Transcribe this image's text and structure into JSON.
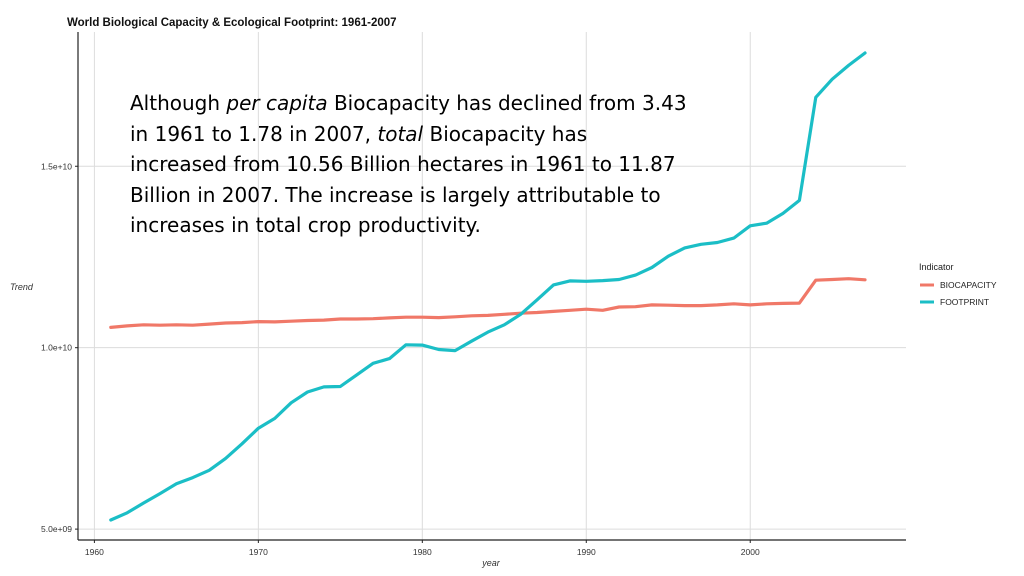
{
  "colors": {
    "biocapacity": "#F07868",
    "footprint": "#1BBEC6",
    "grid": "#dcdcdc",
    "axis": "#222222"
  },
  "annotation": {
    "seg1": "Although ",
    "em1": "per capita",
    "seg2": " Biocapacity has declined from 3.43 in 1961 to 1.78 in 2007, ",
    "em2": "total",
    "seg3": " Biocapacity has increased from 10.56 Billion hectares in 1961 to 11.87 Billion in 2007.  The increase is largely attributable to increases in total crop productivity."
  },
  "chart_data": {
    "type": "line",
    "title": "World Biological Capacity & Ecological Footprint:  1961-2007",
    "xlabel": "year",
    "ylabel": "Trend",
    "xlim": [
      1959,
      2009.5
    ],
    "ylim": [
      4700000000.0,
      18700000000.0
    ],
    "x_ticks": [
      1960,
      1970,
      1980,
      1990,
      2000
    ],
    "x_tick_labels": [
      "1960",
      "1970",
      "1980",
      "1990",
      "2000"
    ],
    "y_ticks": [
      5000000000.0,
      10000000000.0,
      15000000000.0
    ],
    "y_tick_labels": [
      "5.0e+09",
      "1.0e+10",
      "1.5e+10"
    ],
    "grid": true,
    "legend_title": "Indicator",
    "legend_position": "right",
    "x": [
      1961,
      1962,
      1963,
      1964,
      1965,
      1966,
      1967,
      1968,
      1969,
      1970,
      1971,
      1972,
      1973,
      1974,
      1975,
      1976,
      1977,
      1978,
      1979,
      1980,
      1981,
      1982,
      1983,
      1984,
      1985,
      1986,
      1987,
      1988,
      1989,
      1990,
      1991,
      1992,
      1993,
      1994,
      1995,
      1996,
      1997,
      1998,
      1999,
      2000,
      2001,
      2002,
      2003,
      2004,
      2005,
      2006,
      2007
    ],
    "series": [
      {
        "name": "BIOCAPACITY",
        "values": [
          10560000000.0,
          10600000000.0,
          10630000000.0,
          10620000000.0,
          10630000000.0,
          10620000000.0,
          10650000000.0,
          10680000000.0,
          10690000000.0,
          10720000000.0,
          10710000000.0,
          10730000000.0,
          10750000000.0,
          10760000000.0,
          10790000000.0,
          10790000000.0,
          10800000000.0,
          10820000000.0,
          10840000000.0,
          10840000000.0,
          10830000000.0,
          10850000000.0,
          10880000000.0,
          10890000000.0,
          10920000000.0,
          10950000000.0,
          10970000000.0,
          11000000000.0,
          11030000000.0,
          11060000000.0,
          11030000000.0,
          11120000000.0,
          11130000000.0,
          11180000000.0,
          11170000000.0,
          11160000000.0,
          11160000000.0,
          11180000000.0,
          11210000000.0,
          11180000000.0,
          11210000000.0,
          11220000000.0,
          11230000000.0,
          11860000000.0,
          11880000000.0,
          11900000000.0,
          11870000000.0
        ]
      },
      {
        "name": "FOOTPRINT",
        "values": [
          5250000000.0,
          5450000000.0,
          5720000000.0,
          5980000000.0,
          6250000000.0,
          6420000000.0,
          6620000000.0,
          6950000000.0,
          7350000000.0,
          7780000000.0,
          8050000000.0,
          8480000000.0,
          8780000000.0,
          8920000000.0,
          8930000000.0,
          9250000000.0,
          9570000000.0,
          9700000000.0,
          10080000000.0,
          10070000000.0,
          9950000000.0,
          9920000000.0,
          10180000000.0,
          10430000000.0,
          10630000000.0,
          10920000000.0,
          11320000000.0,
          11730000000.0,
          11840000000.0,
          11830000000.0,
          11850000000.0,
          11880000000.0,
          12000000000.0,
          12210000000.0,
          12520000000.0,
          12750000000.0,
          12850000000.0,
          12900000000.0,
          13020000000.0,
          13360000000.0,
          13430000000.0,
          13700000000.0,
          14060000000.0,
          16900000000.0,
          17400000000.0,
          17780000000.0,
          18120000000.0
        ]
      }
    ]
  }
}
